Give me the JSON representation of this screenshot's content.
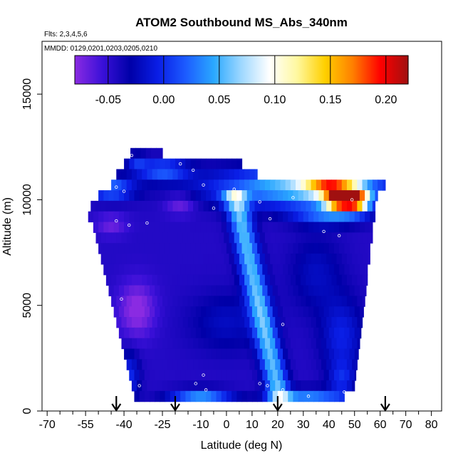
{
  "chart_data": {
    "type": "heatmap",
    "title": "ATOM2 Southbound MS_Abs_340nm",
    "subtitle_flights": "Flts: 2,3,4,5,6",
    "subtitle_dates": "MMDD: 0129,0201,0203,0205,0210",
    "xlabel": "Latitude (deg N)",
    "ylabel": "Altitude (m)",
    "xlim": [
      -72,
      84
    ],
    "ylim": [
      0,
      17500
    ],
    "x_ticks": [
      -70,
      -55,
      -40,
      -25,
      -10,
      0,
      10,
      20,
      30,
      40,
      50,
      60,
      70,
      80
    ],
    "x_tick_labels": [
      "-70",
      "-55",
      "-40",
      "-25",
      "-10",
      "0",
      "10",
      "20",
      "30",
      "40",
      "50",
      "60",
      "70",
      "80"
    ],
    "x_minor_ticks": [
      -65,
      -60,
      -50,
      -45,
      -35,
      -30,
      -20,
      -15,
      -5,
      5,
      15,
      25,
      35,
      45,
      55,
      65,
      75
    ],
    "y_ticks": [
      0,
      5000,
      10000,
      15000
    ],
    "y_tick_labels": [
      "0",
      "5000",
      "10000",
      "15000"
    ],
    "colorbar": {
      "min": -0.08,
      "max": 0.22,
      "ticks": [
        -0.05,
        0.0,
        0.05,
        0.1,
        0.15,
        0.2
      ],
      "tick_labels": [
        "-0.05",
        "0.00",
        "0.05",
        "0.10",
        "0.15",
        "0.20"
      ],
      "colors": [
        "#8a2be2",
        "#3a10d8",
        "#0000a8",
        "#0a1ee6",
        "#1c5cff",
        "#2aa8ff",
        "#9fd8ff",
        "#ffffff",
        "#fff8a0",
        "#ffd000",
        "#ff8000",
        "#ff0000",
        "#a01010"
      ]
    },
    "altitude_rows": [
      {
        "alt": 12200,
        "lat_min": -37.5,
        "lat_max": -25.0
      },
      {
        "alt": 11700,
        "lat_min": -40.0,
        "lat_max": 6.0
      },
      {
        "alt": 11200,
        "lat_min": -43.0,
        "lat_max": 12.0
      },
      {
        "alt": 10700,
        "lat_min": -45.0,
        "lat_max": 62.0
      },
      {
        "alt": 10200,
        "lat_min": -50.0,
        "lat_max": 59.0
      },
      {
        "alt": 9700,
        "lat_min": -53.0,
        "lat_max": 58.0
      },
      {
        "alt": 9200,
        "lat_min": -54.0,
        "lat_max": 58.0
      },
      {
        "alt": 8700,
        "lat_min": -52.0,
        "lat_max": 57.0
      },
      {
        "alt": 8200,
        "lat_min": -51.0,
        "lat_max": 57.0
      },
      {
        "alt": 7700,
        "lat_min": -50.0,
        "lat_max": 56.0
      },
      {
        "alt": 7200,
        "lat_min": -49.0,
        "lat_max": 56.0
      },
      {
        "alt": 6700,
        "lat_min": -48.0,
        "lat_max": 55.0
      },
      {
        "alt": 6200,
        "lat_min": -47.0,
        "lat_max": 55.0
      },
      {
        "alt": 5700,
        "lat_min": -46.0,
        "lat_max": 54.5
      },
      {
        "alt": 5200,
        "lat_min": -45.0,
        "lat_max": 54.0
      },
      {
        "alt": 4700,
        "lat_min": -44.0,
        "lat_max": 53.5
      },
      {
        "alt": 4200,
        "lat_min": -43.0,
        "lat_max": 53.0
      },
      {
        "alt": 3700,
        "lat_min": -42.0,
        "lat_max": 52.5
      },
      {
        "alt": 3200,
        "lat_min": -41.0,
        "lat_max": 52.0
      },
      {
        "alt": 2700,
        "lat_min": -40.0,
        "lat_max": 51.5
      },
      {
        "alt": 2200,
        "lat_min": -39.0,
        "lat_max": 51.0
      },
      {
        "alt": 1700,
        "lat_min": -38.0,
        "lat_max": 50.5
      },
      {
        "alt": 1200,
        "lat_min": -37.0,
        "lat_max": 50.0
      },
      {
        "alt": 700,
        "lat_min": -36.0,
        "lat_max": 46.0
      }
    ],
    "feature_map": {
      "background": -0.045,
      "features": [
        {
          "type": "streak",
          "lat_bottom": 21.0,
          "lat_top": 3.0,
          "alt_bottom": 500,
          "alt_top": 10400,
          "width": 4.5,
          "value": 0.055
        },
        {
          "type": "blob",
          "lat": 30.0,
          "alt": 10600,
          "dlat": 36.0,
          "dalt": 900,
          "value": 0.06
        },
        {
          "type": "blob",
          "lat": 40.0,
          "alt": 10700,
          "dlat": 10.0,
          "dalt": 500,
          "value": 0.085
        },
        {
          "type": "blob",
          "lat": 50.0,
          "alt": 10000,
          "dlat": 5.5,
          "dalt": 500,
          "value": 0.19
        },
        {
          "type": "blob",
          "lat": 43.0,
          "alt": 10000,
          "dlat": 5.0,
          "dalt": 450,
          "value": 0.13
        },
        {
          "type": "blob",
          "lat": -45.0,
          "alt": 10500,
          "dlat": 9.0,
          "dalt": 500,
          "value": 0.03
        },
        {
          "type": "blob",
          "lat": -25.0,
          "alt": 11400,
          "dlat": 10.0,
          "dalt": 500,
          "value": 0.02
        },
        {
          "type": "blob",
          "lat": -35.0,
          "alt": 4800,
          "dlat": 7.0,
          "dalt": 1300,
          "value": -0.085
        },
        {
          "type": "blob",
          "lat": -18.0,
          "alt": 9800,
          "dlat": 6.0,
          "dalt": 500,
          "value": -0.075
        },
        {
          "type": "blob",
          "lat": -45.0,
          "alt": 8800,
          "dlat": 6.0,
          "dalt": 500,
          "value": -0.07
        },
        {
          "type": "blob",
          "lat": -10.0,
          "alt": 600,
          "dlat": 12.0,
          "dalt": 400,
          "value": 0.04
        },
        {
          "type": "blob",
          "lat": 32.0,
          "alt": 600,
          "dlat": 14.0,
          "dalt": 400,
          "value": 0.035
        },
        {
          "type": "blob",
          "lat": -38.0,
          "alt": 1600,
          "dlat": 4.0,
          "dalt": 1200,
          "value": 0.0
        },
        {
          "type": "blob",
          "lat": 45.0,
          "alt": 1500,
          "dlat": 5.0,
          "dalt": 800,
          "value": -0.01
        },
        {
          "type": "blob",
          "lat": 0.0,
          "alt": 4200,
          "dlat": 14.0,
          "dalt": 1400,
          "value": -0.02
        },
        {
          "type": "blob",
          "lat": 45.0,
          "alt": 3500,
          "dlat": 8.0,
          "dalt": 1800,
          "value": -0.005
        },
        {
          "type": "blob",
          "lat": 35.0,
          "alt": 6500,
          "dlat": 10.0,
          "dalt": 1800,
          "value": -0.02
        },
        {
          "type": "blob",
          "lat": 40.0,
          "alt": 9300,
          "dlat": 14.0,
          "dalt": 500,
          "value": 0.02
        },
        {
          "type": "blob",
          "lat": -35.0,
          "alt": 11800,
          "dlat": 4.0,
          "dalt": 400,
          "value": -0.01
        }
      ]
    },
    "sample_points": [
      {
        "lat": -37,
        "alt": 12100
      },
      {
        "lat": -18,
        "alt": 11700
      },
      {
        "lat": -13,
        "alt": 11400
      },
      {
        "lat": -43,
        "alt": 10600
      },
      {
        "lat": -40,
        "alt": 10400
      },
      {
        "lat": -55,
        "alt": 10100
      },
      {
        "lat": -66,
        "alt": 10000
      },
      {
        "lat": -9,
        "alt": 10700
      },
      {
        "lat": 3,
        "alt": 10500
      },
      {
        "lat": -5,
        "alt": 9600
      },
      {
        "lat": 13,
        "alt": 9900
      },
      {
        "lat": 26,
        "alt": 10100
      },
      {
        "lat": -58,
        "alt": 9800
      },
      {
        "lat": -55,
        "alt": 9300
      },
      {
        "lat": -43,
        "alt": 9000
      },
      {
        "lat": -38,
        "alt": 8800
      },
      {
        "lat": -31,
        "alt": 8900
      },
      {
        "lat": 17,
        "alt": 9100
      },
      {
        "lat": 38,
        "alt": 8500
      },
      {
        "lat": 44,
        "alt": 8300
      },
      {
        "lat": 49,
        "alt": 10000
      },
      {
        "lat": -54,
        "alt": 7300
      },
      {
        "lat": -41,
        "alt": 5300
      },
      {
        "lat": 22,
        "alt": 4100
      },
      {
        "lat": 57,
        "alt": 2300
      },
      {
        "lat": -9,
        "alt": 1700
      },
      {
        "lat": -8,
        "alt": 1000
      },
      {
        "lat": -12,
        "alt": 1300
      },
      {
        "lat": -34,
        "alt": 1200
      },
      {
        "lat": 16,
        "alt": 1200
      },
      {
        "lat": 13,
        "alt": 1300
      },
      {
        "lat": 22,
        "alt": 1000
      },
      {
        "lat": 32,
        "alt": 700
      },
      {
        "lat": 46,
        "alt": 900
      },
      {
        "lat": -66,
        "alt": 9200
      },
      {
        "lat": 60,
        "alt": 11300
      }
    ],
    "arrow_latitudes": [
      -43,
      -20,
      20,
      62
    ]
  }
}
